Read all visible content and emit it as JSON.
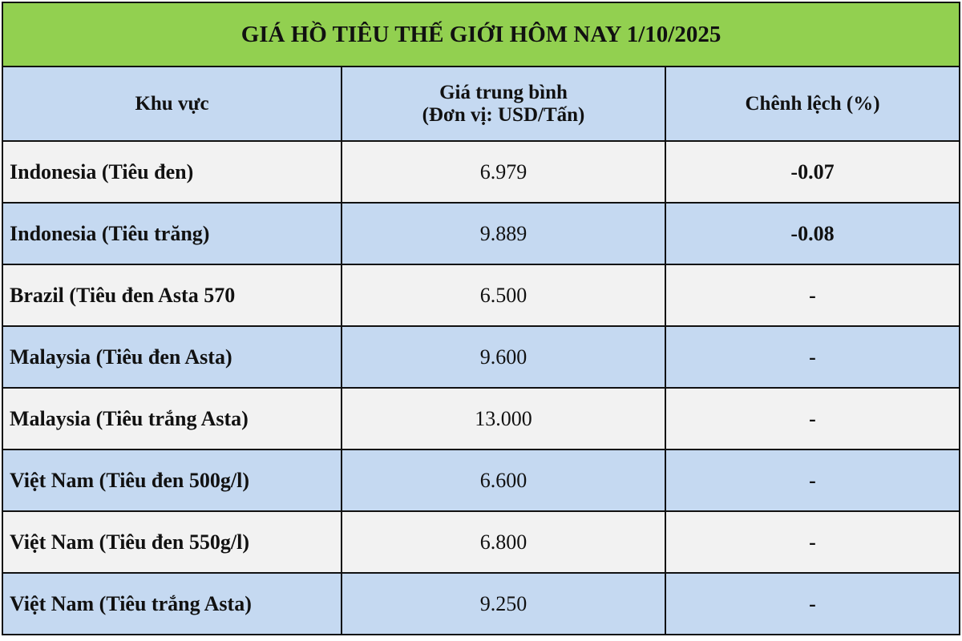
{
  "title": "GIÁ HỒ TIÊU THẾ GIỚI HÔM NAY 1/10/2025",
  "headers": {
    "region": "Khu vực",
    "price_line1": "Giá trung bình",
    "price_line2": "(Đơn vị: USD/Tấn)",
    "change": "Chênh lệch (%)"
  },
  "colors": {
    "title_bg": "#92d050",
    "header_bg": "#c5d9f1",
    "negative": "#e0201c"
  },
  "rows": [
    {
      "region": "Indonesia (Tiêu đen)",
      "price": "6.979",
      "change": "-0.07"
    },
    {
      "region": "Indonesia (Tiêu trăng)",
      "price": "9.889",
      "change": "-0.08"
    },
    {
      "region": "Brazil (Tiêu đen Asta 570",
      "price": "6.500",
      "change": "-"
    },
    {
      "region": "Malaysia (Tiêu đen Asta)",
      "price": "9.600",
      "change": "-"
    },
    {
      "region": "Malaysia (Tiêu trắng Asta)",
      "price": "13.000",
      "change": "-"
    },
    {
      "region": "Việt Nam (Tiêu đen 500g/l)",
      "price": "6.600",
      "change": "-"
    },
    {
      "region": "Việt Nam (Tiêu đen 550g/l)",
      "price": "6.800",
      "change": "-"
    },
    {
      "region": "Việt Nam (Tiêu trắng Asta)",
      "price": "9.250",
      "change": "-"
    }
  ]
}
